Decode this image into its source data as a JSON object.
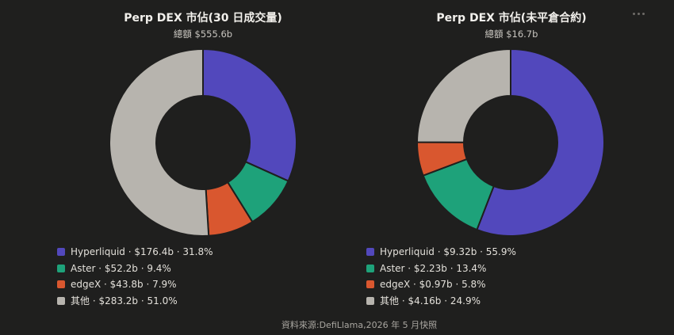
{
  "colors": {
    "hyperliquid": "#5248bc",
    "aster": "#1ea27a",
    "edgex": "#d9572f",
    "other": "#b7b4ae",
    "background": "#1f1f1e"
  },
  "menu_icon": "more-horizontal-icon",
  "footer": "資料來源:DefiLlama,2026 年 5 月快照",
  "chart_data": [
    {
      "type": "pie",
      "title": "Perp DEX 市佔(30 日成交量)",
      "subtitle": "總額 $555.6b",
      "legend_position": "bottom",
      "categories": [
        "Hyperliquid",
        "Aster",
        "edgeX",
        "其他"
      ],
      "values": [
        176.4,
        52.2,
        43.8,
        283.2
      ],
      "value_labels": [
        "$176.4b",
        "$52.2b",
        "$43.8b",
        "$283.2b"
      ],
      "percent_labels": [
        "31.8%",
        "9.4%",
        "7.9%",
        "51.0%"
      ],
      "colors": [
        "#5248bc",
        "#1ea27a",
        "#d9572f",
        "#b7b4ae"
      ]
    },
    {
      "type": "pie",
      "title": "Perp DEX 市佔(未平倉合約)",
      "subtitle": "總額 $16.7b",
      "legend_position": "bottom",
      "categories": [
        "Hyperliquid",
        "Aster",
        "edgeX",
        "其他"
      ],
      "values": [
        9.32,
        2.23,
        0.97,
        4.16
      ],
      "value_labels": [
        "$9.32b",
        "$2.23b",
        "$0.97b",
        "$4.16b"
      ],
      "percent_labels": [
        "55.9%",
        "13.4%",
        "5.8%",
        "24.9%"
      ],
      "colors": [
        "#5248bc",
        "#1ea27a",
        "#d9572f",
        "#b7b4ae"
      ]
    }
  ]
}
